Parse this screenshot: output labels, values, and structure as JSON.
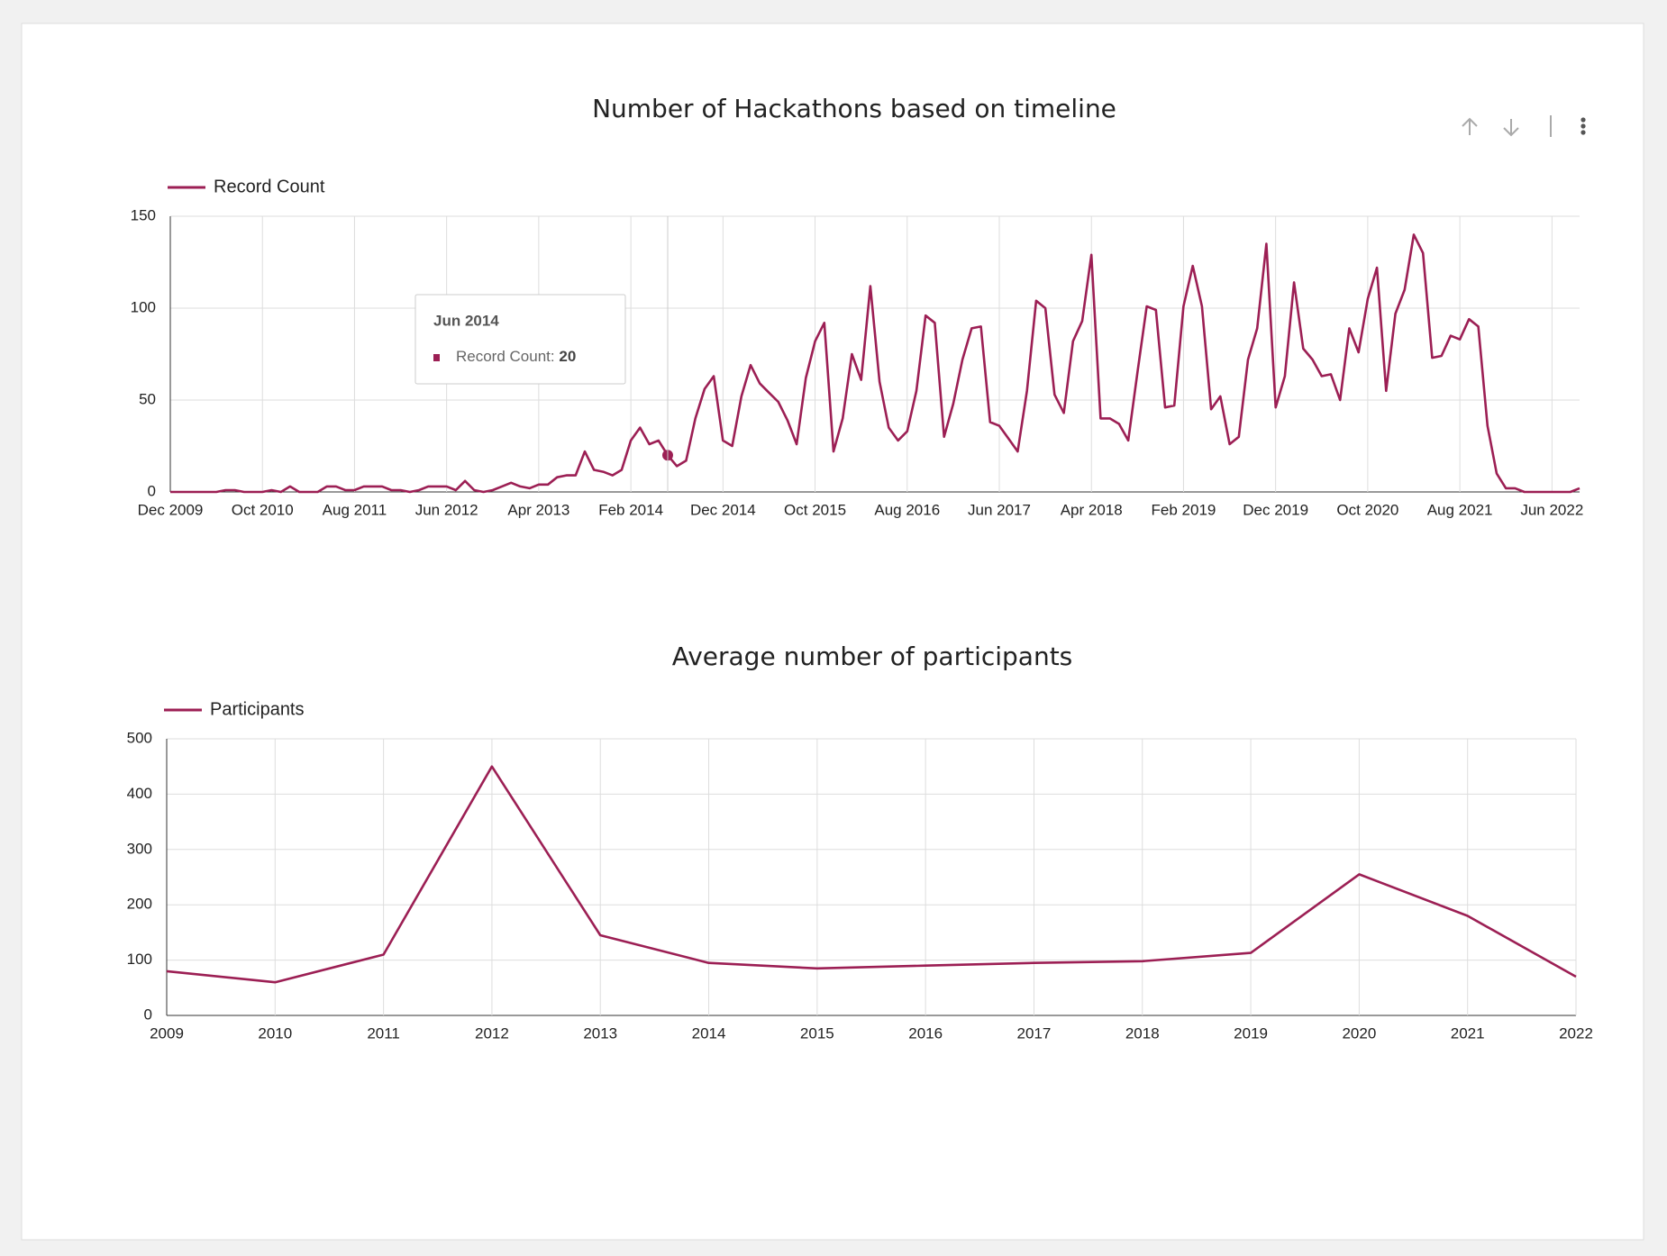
{
  "chart_data": [
    {
      "type": "line",
      "title": "Number of Hackathons based on timeline",
      "categories": [
        "Dec 2009",
        null,
        null,
        null,
        null,
        null,
        null,
        null,
        null,
        null,
        "Oct 2010",
        null,
        null,
        null,
        null,
        null,
        null,
        null,
        null,
        null,
        "Aug 2011",
        null,
        null,
        null,
        null,
        null,
        null,
        null,
        null,
        null,
        "Jun 2012",
        null,
        null,
        null,
        null,
        null,
        null,
        null,
        null,
        null,
        "Apr 2013",
        null,
        null,
        null,
        null,
        null,
        null,
        null,
        null,
        null,
        "Feb 2014",
        null,
        null,
        null,
        null,
        null,
        null,
        null,
        null,
        null,
        "Dec 2014",
        null,
        null,
        null,
        null,
        null,
        null,
        null,
        null,
        null,
        "Oct 2015",
        null,
        null,
        null,
        null,
        null,
        null,
        null,
        null,
        null,
        "Aug 2016",
        null,
        null,
        null,
        null,
        null,
        null,
        null,
        null,
        null,
        "Jun 2017",
        null,
        null,
        null,
        null,
        null,
        null,
        null,
        null,
        null,
        "Apr 2018",
        null,
        null,
        null,
        null,
        null,
        null,
        null,
        null,
        null,
        "Feb 2019",
        null,
        null,
        null,
        null,
        null,
        null,
        null,
        null,
        null,
        "Dec 2019",
        null,
        null,
        null,
        null,
        null,
        null,
        null,
        null,
        null,
        "Oct 2020",
        null,
        null,
        null,
        null,
        null,
        null,
        null,
        null,
        null,
        "Aug 2021",
        null,
        null,
        null,
        null,
        null,
        null,
        null,
        null,
        null,
        "Jun 2022",
        null,
        null,
        null
      ],
      "series": [
        {
          "name": "Record Count",
          "color": "#9c1f54",
          "values": [
            0,
            0,
            0,
            0,
            0,
            0,
            1,
            1,
            0,
            0,
            0,
            1,
            0,
            3,
            0,
            0,
            0,
            3,
            3,
            1,
            1,
            3,
            3,
            3,
            1,
            1,
            0,
            1,
            3,
            3,
            3,
            1,
            6,
            1,
            0,
            1,
            3,
            5,
            3,
            2,
            4,
            4,
            8,
            9,
            9,
            22,
            12,
            11,
            9,
            12,
            28,
            35,
            26,
            28,
            20,
            14,
            17,
            40,
            56,
            63,
            28,
            25,
            52,
            69,
            59,
            54,
            49,
            39,
            26,
            62,
            82,
            92,
            22,
            40,
            75,
            61,
            112,
            60,
            35,
            28,
            33,
            55,
            96,
            92,
            30,
            48,
            72,
            89,
            90,
            38,
            36,
            29,
            22,
            55,
            104,
            100,
            53,
            43,
            82,
            93,
            129,
            40,
            40,
            37,
            28,
            65,
            101,
            99,
            46,
            47,
            101,
            123,
            101,
            45,
            52,
            26,
            30,
            72,
            89,
            135,
            46,
            63,
            114,
            78,
            72,
            63,
            64,
            50,
            89,
            76,
            105,
            122,
            55,
            97,
            110,
            140,
            130,
            73,
            74,
            85,
            83,
            94,
            90,
            36,
            10,
            2,
            2,
            0,
            0,
            0,
            0,
            0,
            0,
            2
          ]
        }
      ],
      "ylim": [
        0,
        150
      ],
      "yticks": [
        0,
        50,
        100,
        150
      ],
      "grid": true,
      "tooltip": {
        "title": "Jun 2014",
        "label": "Record Count:"
      }
    },
    {
      "type": "line",
      "title": "Average number of participants",
      "x": [
        2009,
        2010,
        2011,
        2012,
        2013,
        2014,
        2015,
        2016,
        2017,
        2018,
        2019,
        2020,
        2021,
        2022
      ],
      "series": [
        {
          "name": "Participants",
          "color": "#9c1f54",
          "values": [
            80,
            60,
            110,
            450,
            145,
            95,
            85,
            90,
            95,
            98,
            113,
            255,
            180,
            70
          ]
        }
      ],
      "xlim": [
        2009,
        2022
      ],
      "xticks": [
        2009,
        2010,
        2011,
        2012,
        2013,
        2014,
        2015,
        2016,
        2017,
        2018,
        2019,
        2020,
        2021,
        2022
      ],
      "ylim": [
        0,
        500
      ],
      "yticks": [
        0,
        100,
        200,
        300,
        400,
        500
      ],
      "grid": true
    }
  ]
}
